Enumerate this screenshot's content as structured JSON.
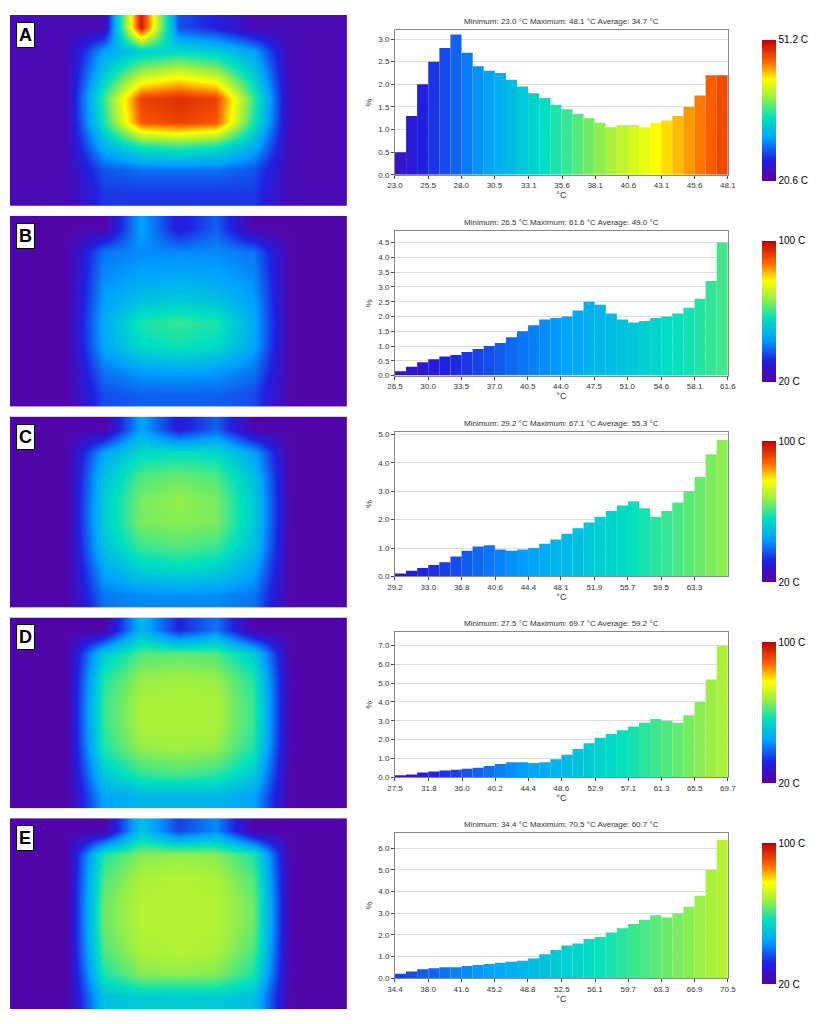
{
  "chart_data": [
    {
      "label": "A",
      "heatmap": {
        "type": "heatmap",
        "tick_labels": false,
        "cells": [
          [
            22,
            22,
            22,
            50,
            27,
            25,
            22,
            22,
            22
          ],
          [
            22,
            22,
            30,
            33,
            34,
            33,
            30,
            22,
            22
          ],
          [
            22,
            22,
            33,
            40,
            42,
            40,
            33,
            22,
            22
          ],
          [
            22,
            22,
            36,
            48,
            49,
            48,
            36,
            22,
            22
          ],
          [
            22,
            22,
            35,
            47,
            48,
            47,
            35,
            22,
            22
          ],
          [
            22,
            22,
            31,
            35,
            36,
            35,
            31,
            22,
            22
          ],
          [
            22,
            22,
            27,
            28,
            28,
            28,
            27,
            22,
            22
          ],
          [
            22,
            22,
            26,
            26,
            26,
            26,
            26,
            22,
            22
          ]
        ],
        "colorbar": {
          "range": [
            20.6,
            51.2
          ],
          "ticks": [
            {
              "value": 20.6,
              "label": "20.6 C"
            },
            {
              "value": 51.2,
              "label": "51.2 C"
            }
          ]
        }
      },
      "histogram": {
        "type": "bar",
        "title": "Minimum: 23.0 °C Maximum: 48.1 °C Average: 34.7 °C",
        "x_label": "°C",
        "y_label": "%",
        "grid": true,
        "bins": [
          23.0,
          23.84,
          24.67,
          25.51,
          26.35,
          27.18,
          28.02,
          28.86,
          29.69,
          30.53,
          31.37,
          32.2,
          33.04,
          33.88,
          34.71,
          35.55,
          36.39,
          37.22,
          38.06,
          38.9,
          39.73,
          40.57,
          41.41,
          42.24,
          43.08,
          43.92,
          44.75,
          45.59,
          46.43,
          47.26,
          48.1
        ],
        "values": [
          0.5,
          1.3,
          2.0,
          2.5,
          2.8,
          3.1,
          2.7,
          2.4,
          2.3,
          2.25,
          2.1,
          1.95,
          1.8,
          1.7,
          1.55,
          1.45,
          1.35,
          1.25,
          1.15,
          1.05,
          1.1,
          1.1,
          1.05,
          1.15,
          1.2,
          1.3,
          1.5,
          1.75,
          2.2,
          2.2
        ],
        "xlim": [
          23.0,
          48.1
        ],
        "xticks": [
          {
            "value": 23,
            "label": "23.0"
          },
          25.5,
          {
            "value": 28,
            "label": "28.0"
          },
          30.5,
          33.1,
          35.6,
          38.1,
          40.6,
          43.1,
          45.6,
          48.1
        ],
        "ylim": [
          0,
          3.2
        ],
        "yticks": [
          {
            "value": 0,
            "label": "0.0"
          },
          0.5,
          {
            "value": 1,
            "label": "1.0"
          },
          1.5,
          {
            "value": 2,
            "label": "2.0"
          },
          2.5,
          {
            "value": 3,
            "label": "3.0"
          }
        ]
      }
    },
    {
      "label": "B",
      "heatmap": {
        "type": "heatmap",
        "tick_labels": false,
        "cells": [
          [
            22,
            22,
            22,
            45,
            30,
            38,
            22,
            22,
            22
          ],
          [
            22,
            22,
            40,
            42,
            42,
            42,
            40,
            22,
            22
          ],
          [
            22,
            22,
            42,
            45,
            46,
            45,
            42,
            22,
            22
          ],
          [
            22,
            22,
            44,
            50,
            52,
            50,
            44,
            22,
            22
          ],
          [
            22,
            22,
            46,
            58,
            60,
            58,
            46,
            22,
            22
          ],
          [
            22,
            22,
            45,
            55,
            57,
            55,
            45,
            22,
            22
          ],
          [
            22,
            22,
            40,
            44,
            45,
            44,
            40,
            22,
            22
          ],
          [
            22,
            22,
            36,
            38,
            38,
            38,
            36,
            22,
            22
          ]
        ],
        "colorbar": {
          "range": [
            20,
            100
          ],
          "ticks": [
            {
              "value": 20,
              "label": "20 C"
            },
            {
              "value": 100,
              "label": "100 C"
            }
          ]
        }
      },
      "histogram": {
        "type": "bar",
        "title": "Minimum: 26.5 °C Maximum: 61.6 °C Average: 49.0 °C",
        "x_label": "°C",
        "y_label": "%",
        "grid": true,
        "bins": [
          26.5,
          27.67,
          28.84,
          30.01,
          31.18,
          32.35,
          33.52,
          34.69,
          35.86,
          37.03,
          38.2,
          39.37,
          40.54,
          41.71,
          42.88,
          44.05,
          45.22,
          46.39,
          47.56,
          48.73,
          49.9,
          51.07,
          52.24,
          53.41,
          54.58,
          55.75,
          56.92,
          58.09,
          59.26,
          60.43,
          61.6
        ],
        "values": [
          0.15,
          0.3,
          0.45,
          0.55,
          0.65,
          0.7,
          0.8,
          0.9,
          1.0,
          1.1,
          1.3,
          1.5,
          1.7,
          1.9,
          1.95,
          2.0,
          2.2,
          2.5,
          2.4,
          2.1,
          1.9,
          1.8,
          1.85,
          1.95,
          2.0,
          2.1,
          2.3,
          2.6,
          3.2,
          4.5
        ],
        "xlim": [
          26.5,
          61.6
        ],
        "xticks": [
          26.5,
          {
            "value": 30,
            "label": "30.0"
          },
          33.5,
          {
            "value": 37,
            "label": "37.0"
          },
          40.5,
          {
            "value": 44,
            "label": "44.0"
          },
          47.5,
          {
            "value": 51,
            "label": "51.0"
          },
          54.6,
          58.1,
          61.6
        ],
        "ylim": [
          0,
          4.9
        ],
        "yticks": [
          {
            "value": 0,
            "label": "0.0"
          },
          0.5,
          {
            "value": 1,
            "label": "1.0"
          },
          1.5,
          {
            "value": 2,
            "label": "2.0"
          },
          2.5,
          {
            "value": 3,
            "label": "3.0"
          },
          3.5,
          {
            "value": 4,
            "label": "4.0"
          },
          4.5
        ]
      }
    },
    {
      "label": "C",
      "heatmap": {
        "type": "heatmap",
        "tick_labels": false,
        "cells": [
          [
            22,
            22,
            22,
            45,
            30,
            38,
            22,
            22,
            22
          ],
          [
            22,
            22,
            45,
            55,
            56,
            55,
            45,
            22,
            22
          ],
          [
            22,
            22,
            50,
            62,
            64,
            62,
            50,
            22,
            22
          ],
          [
            22,
            22,
            52,
            65,
            67,
            65,
            52,
            22,
            22
          ],
          [
            22,
            22,
            52,
            65,
            66,
            65,
            52,
            22,
            22
          ],
          [
            22,
            22,
            50,
            60,
            62,
            60,
            50,
            22,
            22
          ],
          [
            22,
            22,
            45,
            52,
            54,
            52,
            45,
            22,
            22
          ],
          [
            22,
            22,
            40,
            42,
            42,
            42,
            40,
            22,
            22
          ]
        ],
        "colorbar": {
          "range": [
            20,
            100
          ],
          "ticks": [
            {
              "value": 20,
              "label": "20 C"
            },
            {
              "value": 100,
              "label": "100 C"
            }
          ]
        }
      },
      "histogram": {
        "type": "bar",
        "title": "Minimum: 29.2 °C Maximum: 67.1 °C Average: 55.3 °C",
        "x_label": "°C",
        "y_label": "%",
        "grid": true,
        "bins": [
          29.2,
          30.46,
          31.73,
          32.99,
          34.25,
          35.52,
          36.78,
          38.04,
          39.31,
          40.57,
          41.83,
          43.1,
          44.36,
          45.62,
          46.89,
          48.15,
          49.41,
          50.68,
          51.94,
          53.2,
          54.47,
          55.73,
          56.99,
          58.26,
          59.52,
          60.78,
          62.05,
          63.31,
          64.57,
          65.84,
          67.1
        ],
        "values": [
          0.1,
          0.2,
          0.3,
          0.4,
          0.5,
          0.7,
          0.9,
          1.05,
          1.1,
          0.95,
          0.9,
          0.95,
          1.0,
          1.15,
          1.3,
          1.5,
          1.7,
          1.9,
          2.1,
          2.3,
          2.5,
          2.65,
          2.4,
          2.1,
          2.3,
          2.6,
          3.0,
          3.5,
          4.3,
          4.8
        ],
        "xlim": [
          29.2,
          67.1
        ],
        "xticks": [
          29.2,
          {
            "value": 33,
            "label": "33.0"
          },
          36.8,
          40.6,
          44.4,
          48.1,
          51.9,
          55.7,
          59.5,
          63.3
        ],
        "ylim": [
          0,
          5.1
        ],
        "yticks": [
          {
            "value": 0,
            "label": "0.0"
          },
          {
            "value": 1,
            "label": "1.0"
          },
          {
            "value": 2,
            "label": "2.0"
          },
          {
            "value": 3,
            "label": "3.0"
          },
          {
            "value": 4,
            "label": "4.0"
          },
          {
            "value": 5,
            "label": "5.0"
          }
        ]
      }
    },
    {
      "label": "D",
      "heatmap": {
        "type": "heatmap",
        "tick_labels": false,
        "cells": [
          [
            22,
            22,
            22,
            48,
            32,
            40,
            22,
            22,
            22
          ],
          [
            22,
            22,
            52,
            62,
            63,
            62,
            52,
            22,
            22
          ],
          [
            22,
            22,
            58,
            67,
            68,
            67,
            58,
            22,
            22
          ],
          [
            22,
            22,
            60,
            69,
            69,
            69,
            60,
            22,
            22
          ],
          [
            22,
            22,
            60,
            69,
            69,
            69,
            60,
            22,
            22
          ],
          [
            22,
            22,
            58,
            67,
            68,
            67,
            58,
            22,
            22
          ],
          [
            22,
            22,
            52,
            60,
            62,
            60,
            52,
            22,
            22
          ],
          [
            22,
            22,
            45,
            48,
            48,
            48,
            45,
            22,
            22
          ]
        ],
        "colorbar": {
          "range": [
            20,
            100
          ],
          "ticks": [
            {
              "value": 20,
              "label": "20 C"
            },
            {
              "value": 100,
              "label": "100 C"
            }
          ]
        }
      },
      "histogram": {
        "type": "bar",
        "title": "Minimum: 27.5 °C Maximum: 69.7 °C Average: 59.2 °C",
        "x_label": "°C",
        "y_label": "%",
        "grid": true,
        "bins": [
          27.5,
          28.91,
          30.31,
          31.72,
          33.13,
          34.53,
          35.94,
          37.35,
          38.75,
          40.16,
          41.57,
          42.97,
          44.38,
          45.79,
          47.19,
          48.6,
          50.01,
          51.41,
          52.82,
          54.23,
          55.63,
          57.04,
          58.45,
          59.85,
          61.26,
          62.67,
          64.07,
          65.48,
          66.89,
          68.29,
          69.7
        ],
        "values": [
          0.1,
          0.15,
          0.25,
          0.3,
          0.35,
          0.4,
          0.45,
          0.5,
          0.6,
          0.7,
          0.8,
          0.8,
          0.75,
          0.8,
          0.95,
          1.2,
          1.5,
          1.8,
          2.1,
          2.3,
          2.5,
          2.7,
          2.9,
          3.1,
          3.0,
          2.9,
          3.3,
          4.0,
          5.2,
          7.0
        ],
        "xlim": [
          27.5,
          69.7
        ],
        "xticks": [
          27.5,
          31.8,
          {
            "value": 36,
            "label": "36.0"
          },
          40.2,
          44.4,
          48.6,
          52.9,
          57.1,
          61.3,
          65.5,
          69.7
        ],
        "ylim": [
          0,
          7.7
        ],
        "yticks": [
          {
            "value": 0,
            "label": "0.0"
          },
          {
            "value": 1,
            "label": "1.0"
          },
          {
            "value": 2,
            "label": "2.0"
          },
          {
            "value": 3,
            "label": "3.0"
          },
          {
            "value": 4,
            "label": "4.0"
          },
          {
            "value": 5,
            "label": "5.0"
          },
          {
            "value": 6,
            "label": "6.0"
          },
          {
            "value": 7,
            "label": "7.0"
          }
        ]
      }
    },
    {
      "label": "E",
      "heatmap": {
        "type": "heatmap",
        "tick_labels": false,
        "cells": [
          [
            22,
            22,
            22,
            50,
            35,
            42,
            22,
            22,
            22
          ],
          [
            22,
            22,
            58,
            66,
            67,
            66,
            58,
            22,
            22
          ],
          [
            22,
            22,
            62,
            69,
            70,
            69,
            62,
            22,
            22
          ],
          [
            22,
            22,
            64,
            70,
            70,
            70,
            64,
            22,
            22
          ],
          [
            22,
            22,
            64,
            70,
            70,
            70,
            64,
            22,
            22
          ],
          [
            22,
            22,
            62,
            69,
            70,
            69,
            62,
            22,
            22
          ],
          [
            22,
            22,
            58,
            66,
            67,
            66,
            58,
            22,
            22
          ],
          [
            22,
            22,
            50,
            52,
            52,
            52,
            50,
            22,
            22
          ]
        ],
        "colorbar": {
          "range": [
            20,
            100
          ],
          "ticks": [
            {
              "value": 20,
              "label": "20 C"
            },
            {
              "value": 100,
              "label": "100 C"
            }
          ]
        }
      },
      "histogram": {
        "type": "bar",
        "title": "Minimum: 34.4 °C Maximum: 70.5 °C Average: 60.7 °C",
        "x_label": "°C",
        "y_label": "%",
        "grid": true,
        "bins": [
          34.4,
          35.6,
          36.81,
          38.01,
          39.21,
          40.42,
          41.62,
          42.82,
          44.03,
          45.23,
          46.43,
          47.64,
          48.84,
          50.04,
          51.25,
          52.45,
          53.65,
          54.86,
          56.06,
          57.26,
          58.47,
          59.67,
          60.87,
          62.08,
          63.28,
          64.48,
          65.69,
          66.89,
          68.09,
          69.3,
          70.5
        ],
        "values": [
          0.2,
          0.3,
          0.4,
          0.45,
          0.5,
          0.5,
          0.55,
          0.6,
          0.65,
          0.7,
          0.75,
          0.8,
          0.9,
          1.1,
          1.3,
          1.5,
          1.6,
          1.8,
          1.9,
          2.1,
          2.3,
          2.5,
          2.7,
          2.9,
          2.8,
          3.0,
          3.3,
          3.8,
          5.0,
          6.4
        ],
        "xlim": [
          34.4,
          70.5
        ],
        "xticks": [
          34.4,
          {
            "value": 38,
            "label": "38.0"
          },
          41.6,
          45.2,
          48.8,
          52.5,
          56.1,
          59.7,
          63.3,
          66.9,
          70.5
        ],
        "ylim": [
          0,
          6.7
        ],
        "yticks": [
          {
            "value": 0,
            "label": "0.0"
          },
          {
            "value": 1,
            "label": "1.0"
          },
          {
            "value": 2,
            "label": "2.0"
          },
          {
            "value": 3,
            "label": "3.0"
          },
          {
            "value": 4,
            "label": "4.0"
          },
          {
            "value": 5,
            "label": "5.0"
          },
          {
            "value": 6,
            "label": "6.0"
          }
        ]
      }
    }
  ]
}
